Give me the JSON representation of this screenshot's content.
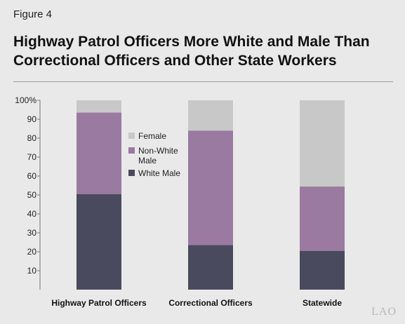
{
  "figure_label": "Figure 4",
  "title_line1": "Highway Patrol Officers More White and Male Than",
  "title_line2": "Correctional Officers and Other State Workers",
  "watermark": "LAO",
  "chart_data": {
    "type": "bar",
    "stacked": true,
    "categories": [
      "Highway Patrol Officers",
      "Correctional Officers",
      "Statewide"
    ],
    "series": [
      {
        "name": "White Male",
        "values": [
          50.5,
          23.5,
          20.5
        ],
        "color": "#4a4a5e"
      },
      {
        "name": "Non-White Male",
        "values": [
          43.0,
          60.5,
          34.0
        ],
        "color": "#9a7aa0"
      },
      {
        "name": "Female",
        "values": [
          6.5,
          16.0,
          45.5
        ],
        "color": "#c8c8c8"
      }
    ],
    "ylim": [
      0,
      100
    ],
    "yticks": [
      "10",
      "20",
      "30",
      "40",
      "50",
      "60",
      "70",
      "80",
      "90",
      "100%"
    ],
    "legend": {
      "position": "inside-left",
      "items": [
        {
          "label": "Female",
          "color": "#c8c8c8"
        },
        {
          "label": "Non-White",
          "label2": "Male",
          "color": "#9a7aa0"
        },
        {
          "label": "White Male",
          "color": "#4a4a5e"
        }
      ]
    },
    "grid": false
  }
}
